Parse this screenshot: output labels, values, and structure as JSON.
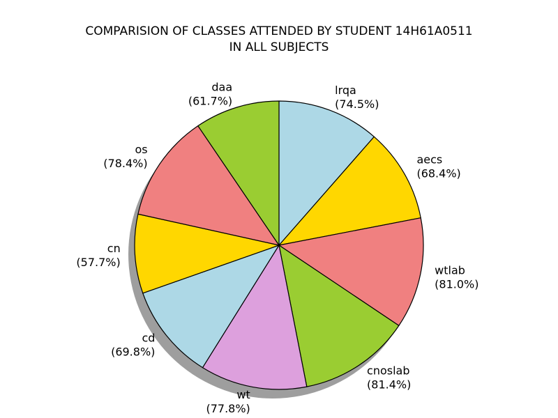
{
  "chart_data": {
    "type": "pie",
    "title_lines": [
      "COMPARISION OF CLASSES ATTENDED BY STUDENT 14H61A0511",
      "IN ALL SUBJECTS"
    ],
    "start_angle_deg": 90,
    "direction": "clockwise",
    "shadow": true,
    "slices": [
      {
        "label": "lrqa",
        "pct_label": "(74.5%)",
        "value": 74.5,
        "color": "#ADD8E6"
      },
      {
        "label": "aecs",
        "pct_label": "(68.4%)",
        "value": 68.4,
        "color": "#FFD700"
      },
      {
        "label": "wtlab",
        "pct_label": "(81.0%)",
        "value": 81.0,
        "color": "#F08080"
      },
      {
        "label": "cnoslab",
        "pct_label": "(81.4%)",
        "value": 81.4,
        "color": "#9ACD32"
      },
      {
        "label": "wt",
        "pct_label": "(77.8%)",
        "value": 77.8,
        "color": "#DDA0DD"
      },
      {
        "label": "cd",
        "pct_label": "(69.8%)",
        "value": 69.8,
        "color": "#ADD8E6"
      },
      {
        "label": "cn",
        "pct_label": "(57.7%)",
        "value": 57.7,
        "color": "#FFD700"
      },
      {
        "label": "os",
        "pct_label": "(78.4%)",
        "value": 78.4,
        "color": "#F08080"
      },
      {
        "label": "daa",
        "pct_label": "(61.7%)",
        "value": 61.7,
        "color": "#9ACD32"
      }
    ]
  }
}
